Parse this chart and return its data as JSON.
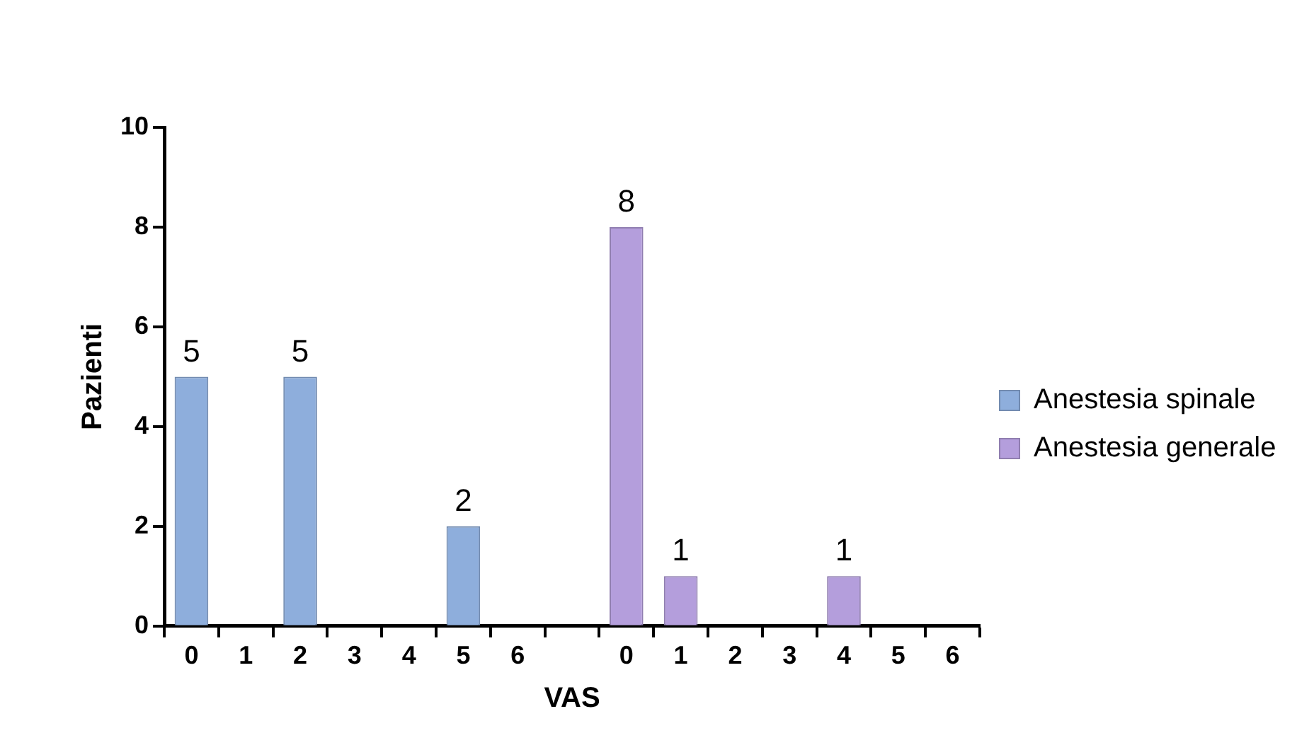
{
  "chart_data": {
    "type": "bar",
    "xlabel": "VAS",
    "ylabel": "Pazienti",
    "categories": [
      "0",
      "1",
      "2",
      "3",
      "4",
      "5",
      "6",
      null,
      "0",
      "1",
      "2",
      "3",
      "4",
      "5",
      "6"
    ],
    "series": [
      {
        "name": "Anestesia spinale",
        "color": "#8eaedc",
        "values": [
          5,
          0,
          5,
          0,
          0,
          2,
          0,
          null,
          null,
          null,
          null,
          null,
          null,
          null,
          null
        ],
        "value_labels": [
          "5",
          null,
          "5",
          null,
          null,
          "2",
          null,
          null,
          null,
          null,
          null,
          null,
          null,
          null,
          null
        ]
      },
      {
        "name": "Anestesia generale",
        "color": "#b49edc",
        "values": [
          null,
          null,
          null,
          null,
          null,
          null,
          null,
          null,
          8,
          1,
          0,
          0,
          1,
          0,
          0
        ],
        "value_labels": [
          null,
          null,
          null,
          null,
          null,
          null,
          null,
          null,
          "8",
          "1",
          null,
          null,
          "1",
          null,
          null
        ]
      }
    ],
    "ylim": [
      0,
      10
    ],
    "yticks": [
      0,
      2,
      4,
      6,
      8,
      10
    ],
    "legend": "right"
  }
}
